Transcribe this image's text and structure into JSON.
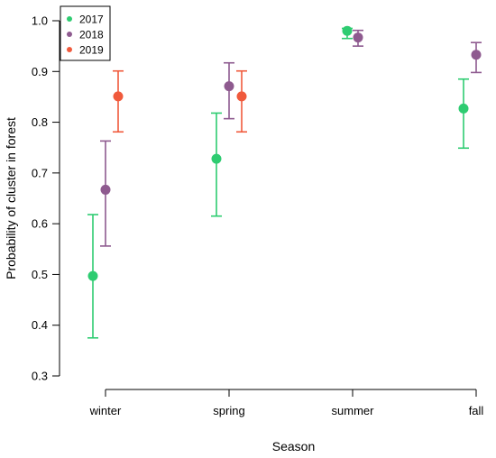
{
  "chart_data": {
    "type": "scatter",
    "xlabel": "Season",
    "ylabel": "Probability of cluster in forest",
    "categories": [
      "winter",
      "spring",
      "summer",
      "fall"
    ],
    "ylim": [
      0.3,
      1.0
    ],
    "yticks": [
      "0.3",
      "0.4",
      "0.5",
      "0.6",
      "0.7",
      "0.8",
      "0.9",
      "1.0"
    ],
    "legend_position": "top-left",
    "grid": false,
    "series": [
      {
        "name": "2017",
        "color": "#2ecc71",
        "points": [
          {
            "category": "winter",
            "y": 0.497,
            "lower": 0.375,
            "upper": 0.618
          },
          {
            "category": "spring",
            "y": 0.728,
            "lower": 0.615,
            "upper": 0.818
          },
          {
            "category": "summer",
            "y": 0.98,
            "lower": 0.965,
            "upper": 0.985
          },
          {
            "category": "fall",
            "y": 0.827,
            "lower": 0.749,
            "upper": 0.885
          }
        ]
      },
      {
        "name": "2018",
        "color": "#8e5a8f",
        "points": [
          {
            "category": "winter",
            "y": 0.667,
            "lower": 0.556,
            "upper": 0.763
          },
          {
            "category": "spring",
            "y": 0.871,
            "lower": 0.807,
            "upper": 0.917
          },
          {
            "category": "summer",
            "y": 0.967,
            "lower": 0.95,
            "upper": 0.981
          },
          {
            "category": "fall",
            "y": 0.933,
            "lower": 0.898,
            "upper": 0.957
          }
        ]
      },
      {
        "name": "2019",
        "color": "#f05a3c",
        "points": [
          {
            "category": "winter",
            "y": 0.851,
            "lower": 0.781,
            "upper": 0.901
          },
          {
            "category": "spring",
            "y": 0.851,
            "lower": 0.781,
            "upper": 0.901
          }
        ]
      }
    ]
  }
}
